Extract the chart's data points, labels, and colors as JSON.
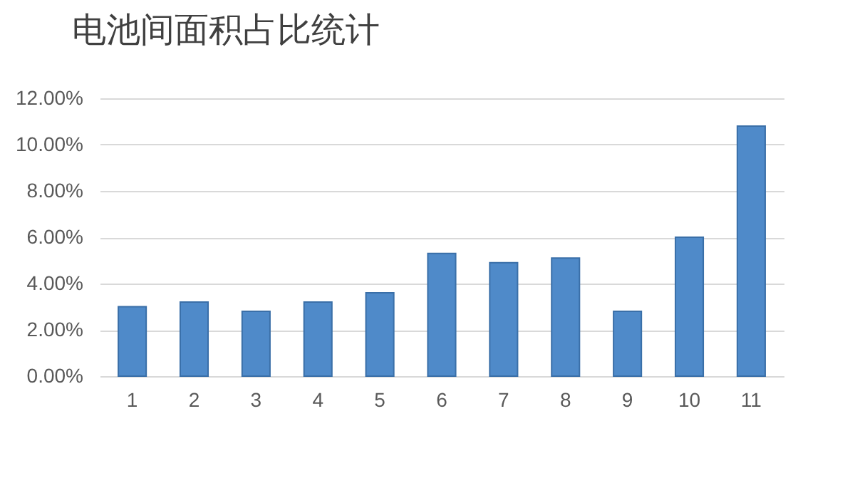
{
  "chart_data": {
    "type": "bar",
    "title": "电池间面积占比统计",
    "categories": [
      "1",
      "2",
      "3",
      "4",
      "5",
      "6",
      "7",
      "8",
      "9",
      "10",
      "11"
    ],
    "values": [
      3.0,
      3.2,
      2.8,
      3.2,
      3.6,
      5.3,
      4.9,
      5.1,
      2.8,
      6.0,
      10.8
    ],
    "color": "#4f8ac9",
    "ylim": [
      0,
      12
    ],
    "yticks": [
      {
        "value": 0,
        "label": "0.00%"
      },
      {
        "value": 2,
        "label": "2.00%"
      },
      {
        "value": 4,
        "label": "4.00%"
      },
      {
        "value": 6,
        "label": "6.00%"
      },
      {
        "value": 8,
        "label": "8.00%"
      },
      {
        "value": 10,
        "label": "10.00%"
      },
      {
        "value": 12,
        "label": "12.00%"
      }
    ],
    "grid": true
  }
}
